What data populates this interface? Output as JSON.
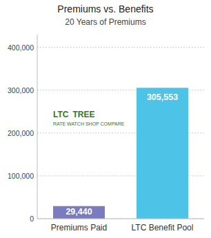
{
  "chart_data": {
    "type": "bar",
    "title": "Premiums vs. Benefits",
    "subtitle": "20 Years of Premiums",
    "categories": [
      "Premiums Paid",
      "LTC Benefit Pool"
    ],
    "values": [
      29440,
      305553
    ],
    "value_labels": [
      "29,440",
      "305,553"
    ],
    "colors": [
      "#7b7bbf",
      "#4dc3e8"
    ],
    "ylim": [
      0,
      430000
    ],
    "yticks": [
      0,
      {
        "value": 100000,
        "label": "100,000"
      },
      {
        "value": 200000,
        "label": "200,000"
      },
      {
        "value": 300000,
        "label": "300,000"
      },
      {
        "value": 400000,
        "label": "400,000"
      }
    ],
    "grid": true,
    "data_labels": true,
    "annotations": [
      "LTC",
      "TREE",
      "RATE WATCH SHOP COMPARE"
    ]
  }
}
